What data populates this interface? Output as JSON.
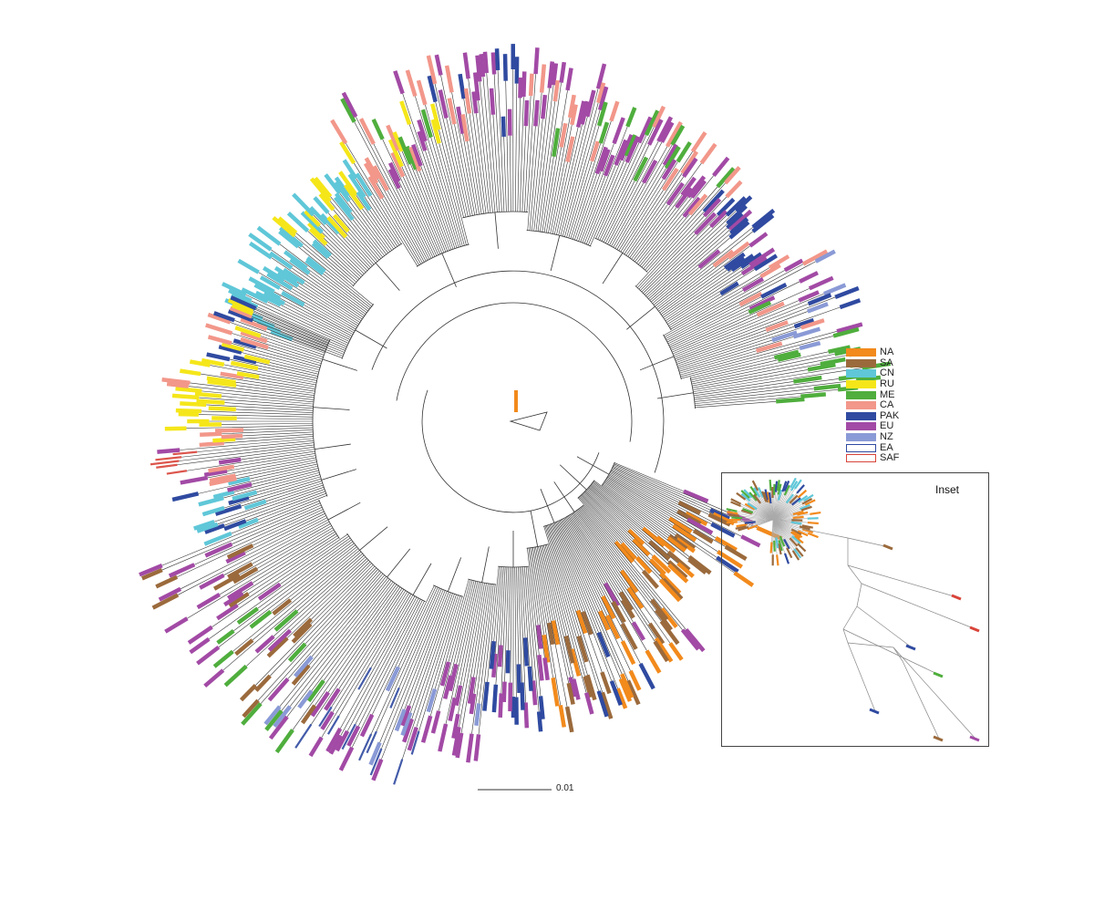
{
  "legend": [
    {
      "code": "NA",
      "color": "#f28a1c",
      "style": "filled"
    },
    {
      "code": "SA",
      "color": "#9b6a3c",
      "style": "filled"
    },
    {
      "code": "CN",
      "color": "#5fc7d8",
      "style": "filled"
    },
    {
      "code": "RU",
      "color": "#f5e61a",
      "style": "filled"
    },
    {
      "code": "ME",
      "color": "#4fae3d",
      "style": "filled"
    },
    {
      "code": "CA",
      "color": "#f2978a",
      "style": "filled"
    },
    {
      "code": "PAK",
      "color": "#2f4aa0",
      "style": "filled"
    },
    {
      "code": "EU",
      "color": "#a24aa5",
      "style": "filled"
    },
    {
      "code": "NZ",
      "color": "#8a9ad6",
      "style": "filled"
    },
    {
      "code": "EA",
      "color": "#2f4aa0",
      "style": "outline"
    },
    {
      "code": "SAF",
      "color": "#d9443a",
      "style": "outline"
    }
  ],
  "inset": {
    "title": "Inset"
  },
  "scale_bar": {
    "label": "0.01"
  },
  "colors": {
    "branch": "#333333",
    "collapsed_clade": "#aaaaaa"
  }
}
